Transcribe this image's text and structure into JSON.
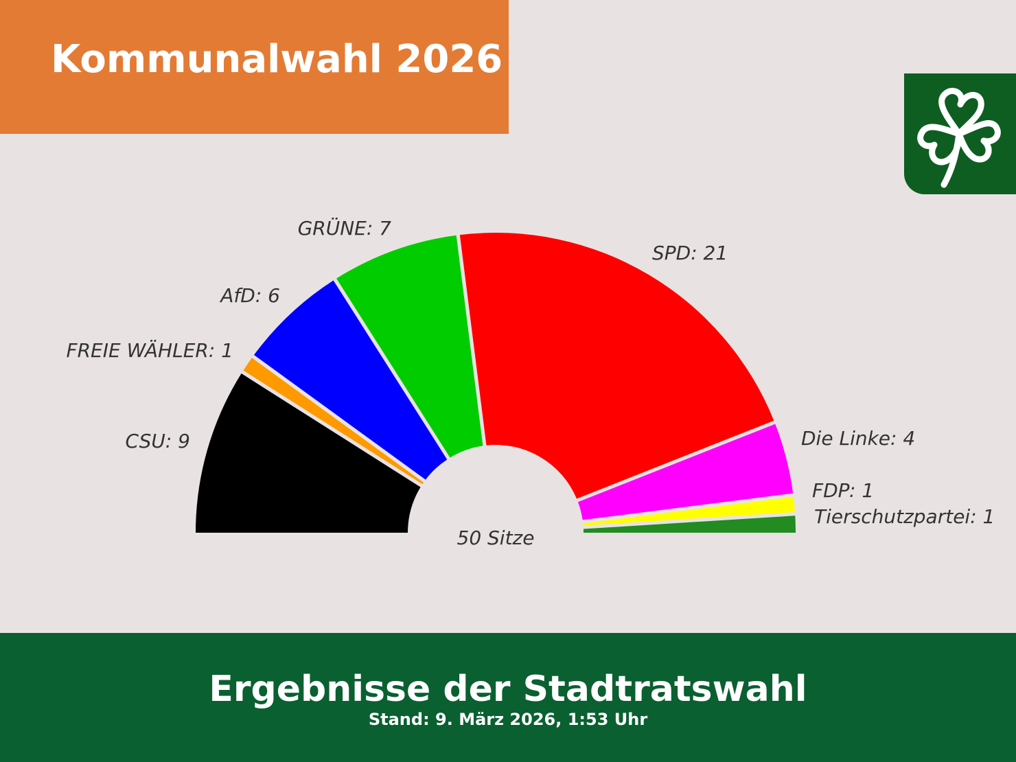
{
  "header": {
    "title": "Kommunalwahl 2026",
    "color": "#e37b35"
  },
  "logo": {
    "icon": "shamrock-icon",
    "color": "#0e5e22"
  },
  "chart_data": {
    "type": "parliament-semicircle",
    "center_label": "50 Sitze",
    "total_seats": 50,
    "parties": [
      {
        "name": "CSU",
        "seats": 9,
        "color": "#000000",
        "label": "CSU: 9"
      },
      {
        "name": "FREIE WÄHLER",
        "seats": 1,
        "color": "#ff9900",
        "label": "FREIE WÄHLER: 1"
      },
      {
        "name": "AfD",
        "seats": 6,
        "color": "#0000ff",
        "label": "AfD: 6"
      },
      {
        "name": "GRÜNE",
        "seats": 7,
        "color": "#00cc00",
        "label": "GRÜNE: 7"
      },
      {
        "name": "SPD",
        "seats": 21,
        "color": "#ff0000",
        "label": "SPD: 21"
      },
      {
        "name": "Die Linke",
        "seats": 4,
        "color": "#ff00ff",
        "label": "Die Linke: 4"
      },
      {
        "name": "FDP",
        "seats": 1,
        "color": "#ffff00",
        "label": "FDP: 1"
      },
      {
        "name": "Tierschutzpartei",
        "seats": 1,
        "color": "#228b22",
        "label": "Tierschutzpartei: 1"
      }
    ]
  },
  "footer": {
    "title": "Ergebnisse der Stadtratswahl",
    "subtitle": "Stand: 9. März 2026, 1:53 Uhr",
    "color": "#0a6030"
  }
}
